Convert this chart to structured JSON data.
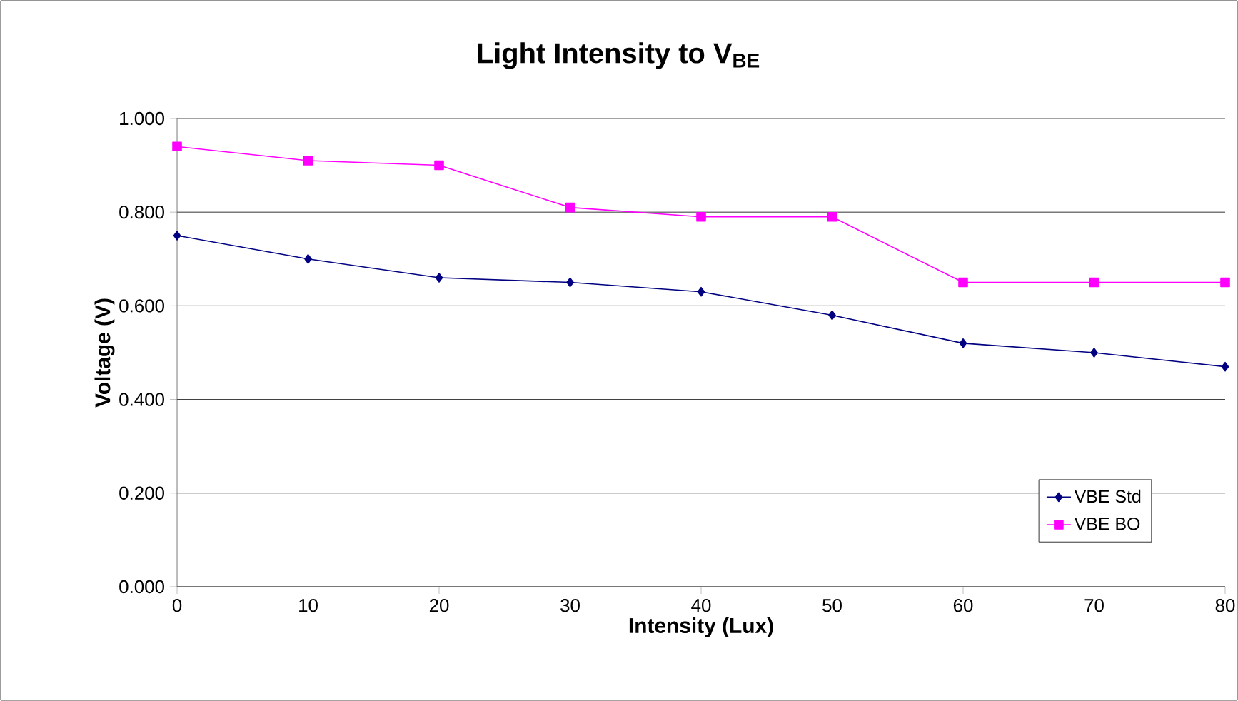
{
  "chart_data": {
    "type": "line",
    "title": "Light Intensity to V$_{BE}$",
    "xlabel": "Intensity (Lux)",
    "ylabel": "Voltage (V)",
    "x": [
      0,
      10,
      20,
      30,
      40,
      50,
      60,
      70,
      80
    ],
    "series": [
      {
        "name": "VBE Std",
        "color": "#000080",
        "marker": "diamond",
        "values": [
          0.75,
          0.7,
          0.66,
          0.65,
          0.63,
          0.58,
          0.52,
          0.5,
          0.47
        ]
      },
      {
        "name": "VBE BO",
        "color": "#ff00ff",
        "marker": "square",
        "values": [
          0.94,
          0.91,
          0.9,
          0.81,
          0.79,
          0.79,
          0.65,
          0.65,
          0.65
        ]
      }
    ],
    "xlim": [
      0,
      80
    ],
    "xticks": [
      0,
      10,
      20,
      30,
      40,
      50,
      60,
      70,
      80
    ],
    "ylim": [
      0,
      1
    ],
    "yticks": [
      {
        "value": 0,
        "label": "0.000"
      },
      {
        "value": 0.2,
        "label": "0.200"
      },
      {
        "value": 0.4,
        "label": "0.400"
      },
      {
        "value": 0.6,
        "label": "0.600"
      },
      {
        "value": 0.8,
        "label": "0.800"
      },
      {
        "value": 1,
        "label": "1.000"
      }
    ],
    "grid": "y",
    "legend": "right",
    "line_style": "solid"
  }
}
